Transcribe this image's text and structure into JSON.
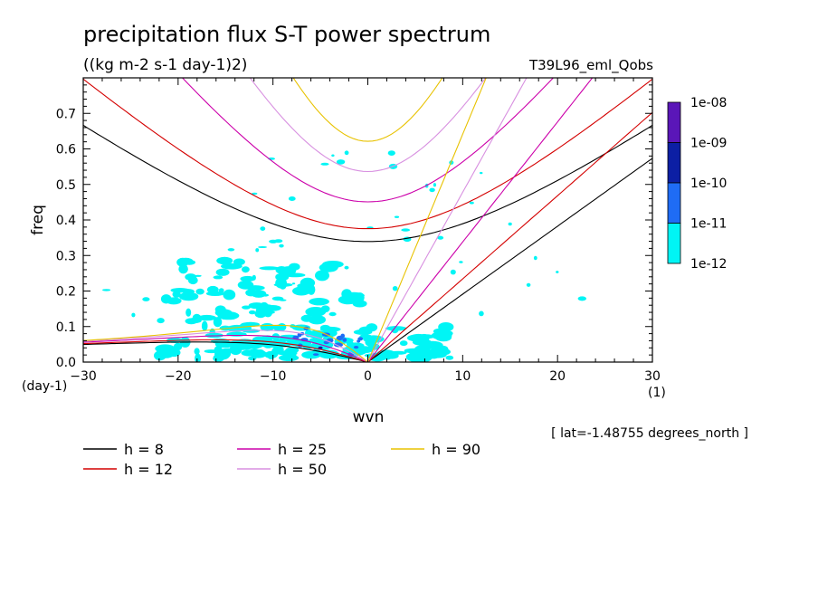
{
  "title": "precipitation flux S-T power spectrum",
  "units": "((kg m-2 s-1 day-1)2)",
  "run_label": "T39L96_eml_Qobs",
  "lat_label": "[ lat=-1.48755 degrees_north ]",
  "chart_data": {
    "type": "contour",
    "xlabel": "wvn",
    "ylabel": "freq",
    "x_unit": "(1)",
    "y_unit": "(day-1)",
    "xlim": [
      -30,
      30
    ],
    "ylim": [
      0,
      0.8
    ],
    "x_ticks": [
      -30,
      -20,
      -10,
      0,
      10,
      20,
      30
    ],
    "y_ticks": [
      0.0,
      0.1,
      0.2,
      0.3,
      0.4,
      0.5,
      0.6,
      0.7
    ],
    "colorbar": {
      "labels": [
        "1e-08",
        "1e-09",
        "1e-10",
        "1e-11",
        "1e-12"
      ],
      "colors": [
        "#5a16b8",
        "#0c1fa4",
        "#1f6cf5",
        "#00f5f5"
      ]
    },
    "dispersion_legend": [
      {
        "label": "h =  8",
        "h": 8,
        "color": "#000000"
      },
      {
        "label": "h = 12",
        "h": 12,
        "color": "#d40000"
      },
      {
        "label": "h = 25",
        "h": 25,
        "color": "#cc00aa"
      },
      {
        "label": "h = 50",
        "h": 50,
        "color": "#d890e0"
      },
      {
        "label": "h = 90",
        "h": 90,
        "color": "#e8c200"
      }
    ]
  }
}
